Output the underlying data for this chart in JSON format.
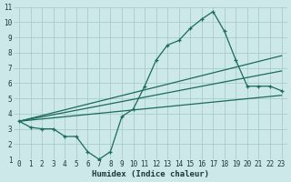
{
  "xlabel": "Humidex (Indice chaleur)",
  "bg_color": "#cde8e8",
  "grid_color": "#a8cccc",
  "line_color": "#1a6b5a",
  "xlim": [
    -0.5,
    23.5
  ],
  "ylim": [
    1,
    11
  ],
  "xticks": [
    0,
    1,
    2,
    3,
    4,
    5,
    6,
    7,
    8,
    9,
    10,
    11,
    12,
    13,
    14,
    15,
    16,
    17,
    18,
    19,
    20,
    21,
    22,
    23
  ],
  "yticks": [
    1,
    2,
    3,
    4,
    5,
    6,
    7,
    8,
    9,
    10,
    11
  ],
  "line1_x": [
    0,
    1,
    2,
    3,
    4,
    5,
    6,
    7,
    8,
    9,
    10,
    11,
    12,
    13,
    14,
    15,
    16,
    17,
    18,
    19,
    20,
    21,
    22,
    23
  ],
  "line1_y": [
    3.5,
    3.1,
    3.0,
    3.0,
    2.5,
    2.5,
    1.5,
    1.0,
    1.5,
    3.8,
    4.3,
    5.8,
    7.5,
    8.5,
    8.8,
    9.6,
    10.2,
    10.7,
    9.4,
    7.5,
    5.8,
    5.8,
    5.8,
    5.5
  ],
  "line2_x": [
    0,
    23
  ],
  "line2_y": [
    3.5,
    7.8
  ],
  "line3_x": [
    0,
    23
  ],
  "line3_y": [
    3.5,
    6.8
  ],
  "line4_x": [
    0,
    23
  ],
  "line4_y": [
    3.5,
    5.2
  ],
  "tick_fontsize": 5.5,
  "xlabel_fontsize": 6.5
}
